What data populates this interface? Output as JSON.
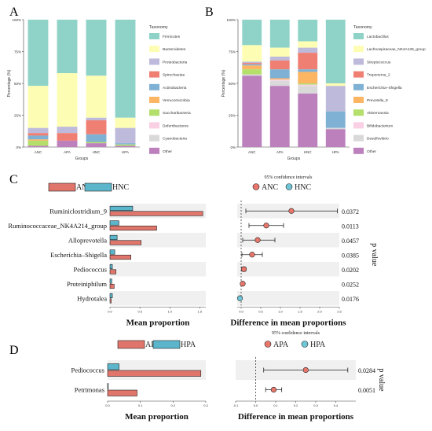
{
  "panels": {
    "a": "A",
    "b": "B",
    "c": "C",
    "d": "D"
  },
  "colors": {
    "red": "#e0766b",
    "teal": "#5bb6cc",
    "red_dot": "#e8766b",
    "teal_dot": "#6fc6d6"
  },
  "chart_data": [
    {
      "id": "A",
      "type": "bar",
      "stacked": true,
      "ylabel": "Percentage (%)",
      "xlabel": "Groups",
      "ylim": [
        0,
        100
      ],
      "yticks": [
        "0%",
        "25%",
        "50%",
        "75%",
        "100%"
      ],
      "categories": [
        "ANC",
        "APA",
        "HNC",
        "HPA"
      ],
      "legend_title": "Taxonomy",
      "series": [
        {
          "name": "Firmicutes",
          "color": "#8fd3c8",
          "values": [
            52,
            42,
            44,
            77
          ]
        },
        {
          "name": "Bacteroidetes",
          "color": "#fdfdb3",
          "values": [
            33,
            42,
            33,
            8
          ]
        },
        {
          "name": "Proteobacteria",
          "color": "#bebadb",
          "values": [
            4,
            5,
            2,
            12
          ]
        },
        {
          "name": "Spirochaetae",
          "color": "#f07f73",
          "values": [
            2,
            6,
            11,
            0
          ]
        },
        {
          "name": "Actinobacteria",
          "color": "#7fb1d4",
          "values": [
            3,
            0,
            6,
            1
          ]
        },
        {
          "name": "Verrucomicrobia",
          "color": "#fbb563",
          "values": [
            1,
            0,
            0,
            0
          ]
        },
        {
          "name": "Saccharibacteria",
          "color": "#b3df6a",
          "values": [
            4,
            0,
            1,
            1
          ]
        },
        {
          "name": "Deferribacteres",
          "color": "#fad0e5",
          "values": [
            0,
            0,
            0,
            0
          ]
        },
        {
          "name": "Cyanobacteria",
          "color": "#d9d9d9",
          "values": [
            0,
            0,
            0,
            0
          ]
        },
        {
          "name": "Other",
          "color": "#bc80bd",
          "values": [
            1,
            5,
            3,
            1
          ]
        }
      ]
    },
    {
      "id": "B",
      "type": "bar",
      "stacked": true,
      "ylabel": "Percentage (%)",
      "xlabel": "Groups",
      "ylim": [
        0,
        100
      ],
      "yticks": [
        "0%",
        "25%",
        "50%",
        "75%",
        "100%"
      ],
      "categories": [
        "ANC",
        "APA",
        "HNC",
        "HPA"
      ],
      "legend_title": "Taxonomy",
      "series": [
        {
          "name": "Lactobacillus",
          "color": "#8fd3c8",
          "values": [
            20,
            22,
            17,
            50
          ]
        },
        {
          "name": "Lachnospiraceae_NK4A136_group",
          "color": "#fdfdb3",
          "values": [
            13,
            7,
            5,
            2
          ]
        },
        {
          "name": "Streptococcus",
          "color": "#bebadb",
          "values": [
            1,
            3,
            4,
            20
          ]
        },
        {
          "name": "Treponema_2",
          "color": "#f07f73",
          "values": [
            1,
            7,
            13,
            0
          ]
        },
        {
          "name": "Escherichia–Shigella",
          "color": "#7fb1d4",
          "values": [
            1,
            7,
            2,
            13
          ]
        },
        {
          "name": "Prevotella_9",
          "color": "#fbb563",
          "values": [
            3,
            1,
            9,
            0
          ]
        },
        {
          "name": "Akkermansia",
          "color": "#b3df6a",
          "values": [
            4,
            0,
            1,
            0
          ]
        },
        {
          "name": "Bifidobacterium",
          "color": "#fad0e5",
          "values": [
            0,
            1,
            1,
            0
          ]
        },
        {
          "name": "Desulfovibrio",
          "color": "#d9d9d9",
          "values": [
            1,
            4,
            6,
            1
          ]
        },
        {
          "name": "Other",
          "color": "#bc80bd",
          "values": [
            56,
            48,
            42,
            14
          ]
        }
      ]
    },
    {
      "id": "C",
      "type": "bar",
      "orientation": "horizontal",
      "xlabel": "Mean proportion",
      "xlim": [
        0,
        1.6
      ],
      "xticks": [
        "0.0",
        "0.5",
        "1.0",
        "1.5"
      ],
      "legend": [
        "ANC",
        "HNC"
      ],
      "categories": [
        "Ruminiclostridium_9",
        "Ruminococcaceae_NK4A214_group",
        "Alloprevotella",
        "Escherichia–Shigella",
        "Pediococcus",
        "Proteiniphilum",
        "Hydrotalea"
      ],
      "series": [
        {
          "name": "ANC",
          "values": [
            1.55,
            0.78,
            0.52,
            0.35,
            0.1,
            0.07,
            0.02
          ]
        },
        {
          "name": "HNC",
          "values": [
            0.38,
            0.15,
            0.12,
            0.08,
            0.04,
            0.03,
            0.04
          ]
        }
      ]
    },
    {
      "id": "C-diff",
      "type": "scatter",
      "title": "95% confidence intervals",
      "xlabel": "Difference in mean proportions",
      "xlim": [
        -0.1,
        2.5
      ],
      "xticks": [
        "0.0",
        "0.5",
        "1.0",
        "1.5",
        "2.0",
        "2.5"
      ],
      "legend": [
        "ANC",
        "HNC"
      ],
      "ylabel": "p value",
      "points": [
        {
          "diff": 1.28,
          "lo": 0.12,
          "hi": 2.45,
          "group": "ANC",
          "p": "0.0372"
        },
        {
          "diff": 0.64,
          "lo": 0.2,
          "hi": 1.08,
          "group": "ANC",
          "p": "0.0113"
        },
        {
          "diff": 0.42,
          "lo": 0.04,
          "hi": 0.86,
          "group": "ANC",
          "p": "0.0457"
        },
        {
          "diff": 0.28,
          "lo": 0.02,
          "hi": 0.54,
          "group": "ANC",
          "p": "0.0385"
        },
        {
          "diff": 0.07,
          "lo": 0.02,
          "hi": 0.12,
          "group": "ANC",
          "p": "0.0202"
        },
        {
          "diff": 0.04,
          "lo": 0.01,
          "hi": 0.07,
          "group": "ANC",
          "p": "0.0252"
        },
        {
          "diff": -0.03,
          "lo": -0.05,
          "hi": -0.01,
          "group": "HNC",
          "p": "0.0176"
        }
      ]
    },
    {
      "id": "D",
      "type": "bar",
      "orientation": "horizontal",
      "xlabel": "Mean proportion",
      "xlim": [
        0,
        0.3
      ],
      "xticks": [
        "0.0",
        "0.1",
        "0.2",
        "0.3"
      ],
      "legend": [
        "APA",
        "HPA"
      ],
      "categories": [
        "Pediococcus",
        "Petrimonas"
      ],
      "series": [
        {
          "name": "APA",
          "values": [
            0.285,
            0.09
          ]
        },
        {
          "name": "HPA",
          "values": [
            0.035,
            0.002
          ]
        }
      ]
    },
    {
      "id": "D-diff",
      "type": "scatter",
      "title": "95% confidence intervals",
      "xlabel": "Difference in mean proportions",
      "xlim": [
        -0.1,
        0.5
      ],
      "xticks": [
        "-0.1",
        "0.0",
        "0.1",
        "0.2",
        "0.3",
        "0.4"
      ],
      "legend": [
        "APA",
        "HPA"
      ],
      "ylabel": "p value",
      "points": [
        {
          "diff": 0.25,
          "lo": 0.04,
          "hi": 0.46,
          "group": "APA",
          "p": "0.0284"
        },
        {
          "diff": 0.09,
          "lo": 0.05,
          "hi": 0.13,
          "group": "APA",
          "p": "0.0051"
        }
      ]
    }
  ]
}
